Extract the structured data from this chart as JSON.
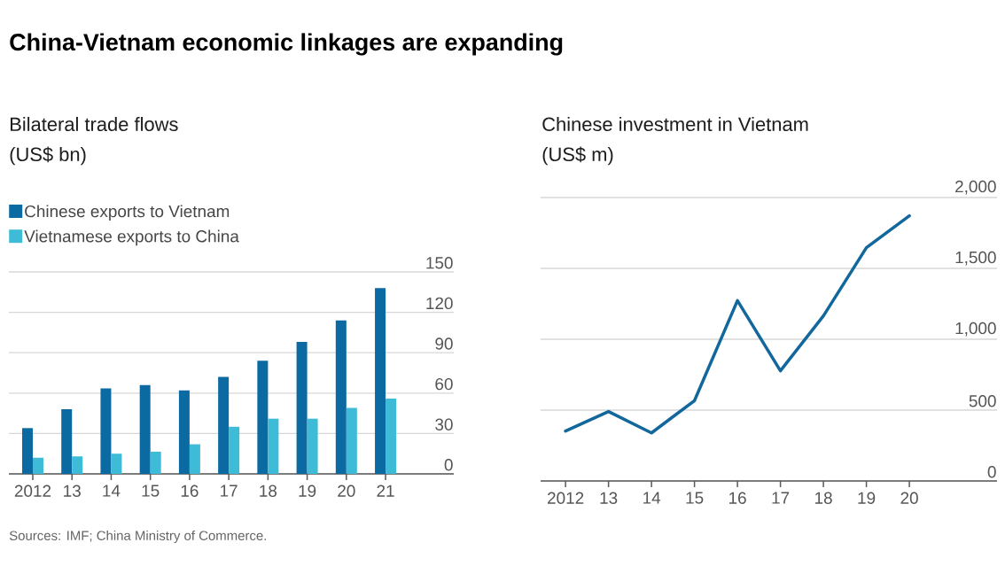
{
  "chart_data": [
    {
      "type": "bar",
      "title": "China-Vietnam economic linkages are expanding",
      "subtitle": "Bilateral trade flows",
      "ylabel": "(US$ bn)",
      "categories": [
        "2012",
        "13",
        "14",
        "15",
        "16",
        "17",
        "18",
        "19",
        "20",
        "21"
      ],
      "series": [
        {
          "name": "Chinese exports to Vietnam",
          "color": "#0b6aa2",
          "values": [
            34,
            48,
            63.5,
            66,
            62,
            72,
            84,
            98,
            114,
            138
          ]
        },
        {
          "name": "Vietnamese exports to China",
          "color": "#3ebbd6",
          "values": [
            12,
            13,
            15,
            16.5,
            22,
            35,
            41,
            41,
            49,
            56
          ]
        }
      ],
      "ylim": [
        0,
        150
      ],
      "yticks": [
        0,
        30,
        60,
        90,
        120,
        150
      ],
      "grid": "y",
      "legend": "top left",
      "annotations": [
        "Sources: IMF; China Ministry of Commerce."
      ]
    },
    {
      "type": "line",
      "title": "Chinese investment in Vietnam",
      "ylabel": "(US$ m)",
      "categories": [
        "2012",
        "13",
        "14",
        "15",
        "16",
        "17",
        "18",
        "19",
        "20"
      ],
      "series": [
        {
          "color": "#12689c",
          "values": [
            352,
            490,
            339,
            567,
            1273,
            777,
            1165,
            1646,
            1871
          ]
        }
      ],
      "ylim": [
        0,
        2000
      ],
      "yticks": [
        0,
        {
          "value": 500,
          "label": "500"
        },
        {
          "value": 1000,
          "label": "1,000"
        },
        {
          "value": 1500,
          "label": "1,500"
        },
        {
          "value": 2000,
          "label": "2,000"
        }
      ],
      "grid": "y",
      "legend": false,
      "marker": "none",
      "line_style": "solid"
    }
  ]
}
